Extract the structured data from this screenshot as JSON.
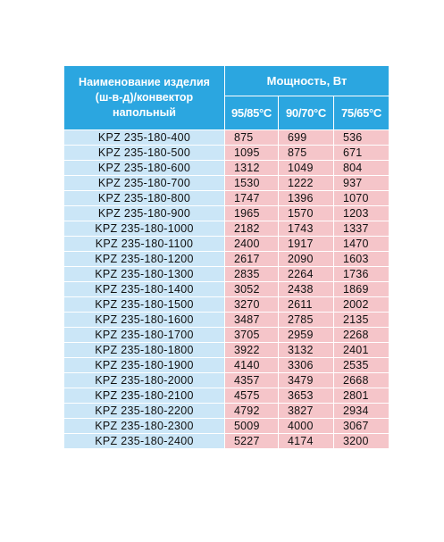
{
  "header": {
    "name_label": "Наименование изделия (ш-в-д)/конвектор напольный",
    "power_label": "Мощность, Вт",
    "temp_columns": [
      "95/85°C",
      "90/70°C",
      "75/65°C"
    ]
  },
  "rows": [
    {
      "name": "KPZ 235-180-400",
      "v1": "875",
      "v2": "699",
      "v3": "536"
    },
    {
      "name": "KPZ 235-180-500",
      "v1": "1095",
      "v2": "875",
      "v3": "671"
    },
    {
      "name": "KPZ 235-180-600",
      "v1": "1312",
      "v2": "1049",
      "v3": "804"
    },
    {
      "name": "KPZ 235-180-700",
      "v1": "1530",
      "v2": "1222",
      "v3": "937"
    },
    {
      "name": "KPZ 235-180-800",
      "v1": "1747",
      "v2": "1396",
      "v3": "1070"
    },
    {
      "name": "KPZ 235-180-900",
      "v1": "1965",
      "v2": "1570",
      "v3": "1203"
    },
    {
      "name": "KPZ 235-180-1000",
      "v1": "2182",
      "v2": "1743",
      "v3": "1337"
    },
    {
      "name": "KPZ 235-180-1100",
      "v1": "2400",
      "v2": "1917",
      "v3": "1470"
    },
    {
      "name": "KPZ 235-180-1200",
      "v1": "2617",
      "v2": "2090",
      "v3": "1603"
    },
    {
      "name": "KPZ 235-180-1300",
      "v1": "2835",
      "v2": "2264",
      "v3": "1736"
    },
    {
      "name": "KPZ 235-180-1400",
      "v1": "3052",
      "v2": "2438",
      "v3": "1869"
    },
    {
      "name": "KPZ 235-180-1500",
      "v1": "3270",
      "v2": "2611",
      "v3": "2002"
    },
    {
      "name": "KPZ 235-180-1600",
      "v1": "3487",
      "v2": "2785",
      "v3": "2135"
    },
    {
      "name": "KPZ 235-180-1700",
      "v1": "3705",
      "v2": "2959",
      "v3": "2268"
    },
    {
      "name": "KPZ 235-180-1800",
      "v1": "3922",
      "v2": "3132",
      "v3": "2401"
    },
    {
      "name": "KPZ 235-180-1900",
      "v1": "4140",
      "v2": "3306",
      "v3": "2535"
    },
    {
      "name": "KPZ 235-180-2000",
      "v1": "4357",
      "v2": "3479",
      "v3": "2668"
    },
    {
      "name": "KPZ 235-180-2100",
      "v1": "4575",
      "v2": "3653",
      "v3": "2801"
    },
    {
      "name": "KPZ 235-180-2200",
      "v1": "4792",
      "v2": "3827",
      "v3": "2934"
    },
    {
      "name": "KPZ 235-180-2300",
      "v1": "5009",
      "v2": "4000",
      "v3": "3067"
    },
    {
      "name": "KPZ 235-180-2400",
      "v1": "5227",
      "v2": "4174",
      "v3": "3200"
    }
  ],
  "colors": {
    "header_bg": "#2ba6e0",
    "name_cell_bg": "#cbe6f7",
    "value_cell_bg": "#f5c5c9"
  }
}
